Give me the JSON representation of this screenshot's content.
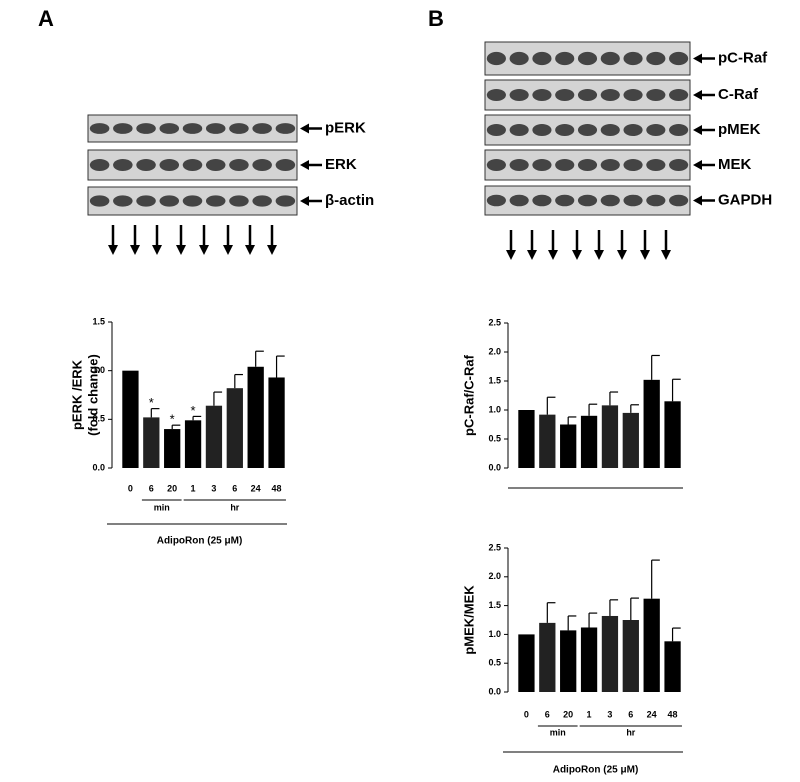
{
  "panel_labels": [
    "A",
    "B"
  ],
  "blots_a": [
    "pERK",
    "ERK",
    "β-actin"
  ],
  "blots_b": [
    "pC-Raf",
    "C-Raf",
    "pMEK",
    "MEK",
    "GAPDH"
  ],
  "chart_data": [
    {
      "type": "bar",
      "ylabel": "pERK /ERK",
      "ylabel2": "(fold change)",
      "categories": [
        "0",
        "6",
        "20",
        "1",
        "3",
        "6",
        "24",
        "48"
      ],
      "values": [
        1.0,
        0.52,
        0.4,
        0.49,
        0.64,
        0.82,
        1.04,
        0.93
      ],
      "errors": [
        null,
        0.09,
        0.04,
        0.04,
        0.14,
        0.14,
        0.16,
        0.22
      ],
      "significance": [
        null,
        "*",
        "*",
        "*",
        null,
        null,
        null,
        null
      ],
      "colors": [
        "#000000",
        "#222222",
        "#000000",
        "#000000",
        "#222222",
        "#222222",
        "#000000",
        "#000000"
      ],
      "ylim": [
        0,
        1.5
      ],
      "yticks": [
        {
          "value": 0,
          "label": "0.0"
        },
        {
          "value": 0.5,
          "label": "0.5"
        },
        {
          "value": 1,
          "label": "1.0"
        },
        {
          "value": 1.5,
          "label": "1.5"
        }
      ],
      "groups": [
        "min",
        "hr"
      ],
      "xlabel": "AdipoRon (25 μM)"
    },
    {
      "type": "bar",
      "ylabel": "pC-Raf/C-Raf",
      "values": [
        1.0,
        0.92,
        0.75,
        0.9,
        1.08,
        0.95,
        1.52,
        1.15
      ],
      "errors": [
        null,
        0.3,
        0.13,
        0.2,
        0.23,
        0.14,
        0.42,
        0.38
      ],
      "colors": [
        "#000000",
        "#222222",
        "#000000",
        "#000000",
        "#222222",
        "#222222",
        "#000000",
        "#000000"
      ],
      "ylim": [
        0,
        2.5
      ],
      "yticks": [
        {
          "value": 0,
          "label": "0.0"
        },
        {
          "value": 0.5,
          "label": "0.5"
        },
        {
          "value": 1,
          "label": "1.0"
        },
        {
          "value": 1.5,
          "label": "1.5"
        },
        {
          "value": 2,
          "label": "2.0"
        },
        {
          "value": 2.5,
          "label": "2.5"
        }
      ]
    },
    {
      "type": "bar",
      "ylabel": "pMEK/MEK",
      "categories": [
        "0",
        "6",
        "20",
        "1",
        "3",
        "6",
        "24",
        "48"
      ],
      "values": [
        1.0,
        1.2,
        1.07,
        1.12,
        1.32,
        1.25,
        1.62,
        0.88
      ],
      "errors": [
        null,
        0.35,
        0.25,
        0.25,
        0.28,
        0.38,
        0.67,
        0.23
      ],
      "colors": [
        "#000000",
        "#222222",
        "#000000",
        "#000000",
        "#222222",
        "#222222",
        "#000000",
        "#000000"
      ],
      "ylim": [
        0,
        2.5
      ],
      "yticks": [
        {
          "value": 0,
          "label": "0.0"
        },
        {
          "value": 0.5,
          "label": "0.5"
        },
        {
          "value": 1,
          "label": "1.0"
        },
        {
          "value": 1.5,
          "label": "1.5"
        },
        {
          "value": 2,
          "label": "2.0"
        },
        {
          "value": 2.5,
          "label": "2.5"
        }
      ],
      "groups": [
        "min",
        "hr"
      ],
      "xlabel": "AdipoRon (25 μM)"
    }
  ]
}
